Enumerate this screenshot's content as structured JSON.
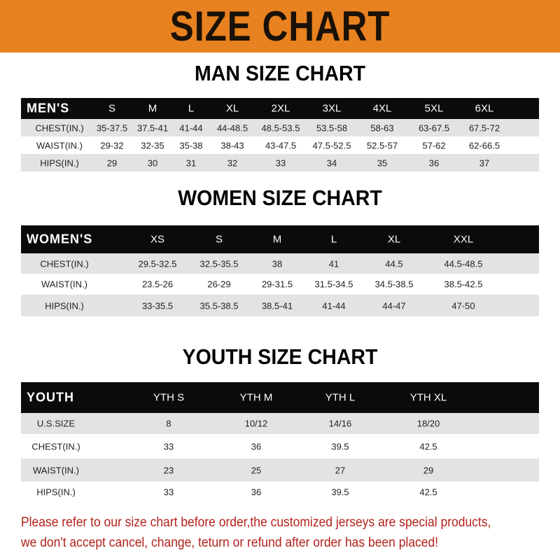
{
  "title": "SIZE CHART",
  "men": {
    "title": "MAN SIZE CHART",
    "header": [
      "MEN'S",
      "S",
      "M",
      "L",
      "XL",
      "2XL",
      "3XL",
      "4XL",
      "5XL",
      "6XL"
    ],
    "rows": [
      [
        "CHEST(IN.)",
        "35-37.5",
        "37.5-41",
        "41-44",
        "44-48.5",
        "48.5-53.5",
        "53.5-58",
        "58-63",
        "63-67.5",
        "67.5-72"
      ],
      [
        "WAIST(IN.)",
        "29-32",
        "32-35",
        "35-38",
        "38-43",
        "43-47.5",
        "47.5-52.5",
        "52.5-57",
        "57-62",
        "62-66.5"
      ],
      [
        "HIPS(IN.)",
        "29",
        "30",
        "31",
        "32",
        "33",
        "34",
        "35",
        "36",
        "37"
      ]
    ]
  },
  "women": {
    "title": "WOMEN SIZE CHART",
    "header": [
      "WOMEN'S",
      "XS",
      "S",
      "M",
      "L",
      "XL",
      "XXL"
    ],
    "rows": [
      [
        "CHEST(IN.)",
        "29.5-32.5",
        "32.5-35.5",
        "38",
        "41",
        "44.5",
        "44.5-48.5"
      ],
      [
        "WAIST(IN.)",
        "23.5-26",
        "26-29",
        "29-31.5",
        "31.5-34.5",
        "34.5-38.5",
        "38.5-42.5"
      ],
      [
        "HIPS(IN.)",
        "33-35.5",
        "35.5-38.5",
        "38.5-41",
        "41-44",
        "44-47",
        "47-50"
      ]
    ]
  },
  "youth": {
    "title": "YOUTH SIZE CHART",
    "header": [
      "YOUTH",
      "YTH S",
      "YTH M",
      "YTH L",
      "YTH XL"
    ],
    "rows": [
      [
        "U.S.SIZE",
        "8",
        "10/12",
        "14/16",
        "18/20"
      ],
      [
        "CHEST(IN.)",
        "33",
        "36",
        "39.5",
        "42.5"
      ],
      [
        "WAIST(IN.)",
        "23",
        "25",
        "27",
        "29"
      ],
      [
        "HIPS(IN.)",
        "33",
        "36",
        "39.5",
        "42.5"
      ]
    ]
  },
  "notice": [
    "Please refer to our size chart before order,the customized jerseys are special products,",
    "we don't accept cancel, change, teturn or refund after order has been placed!"
  ],
  "colors": {
    "banner": "#e8811f",
    "header_row": "#0c0a0a",
    "stripe": "#e3e3e3",
    "notice": "#b3221c"
  }
}
